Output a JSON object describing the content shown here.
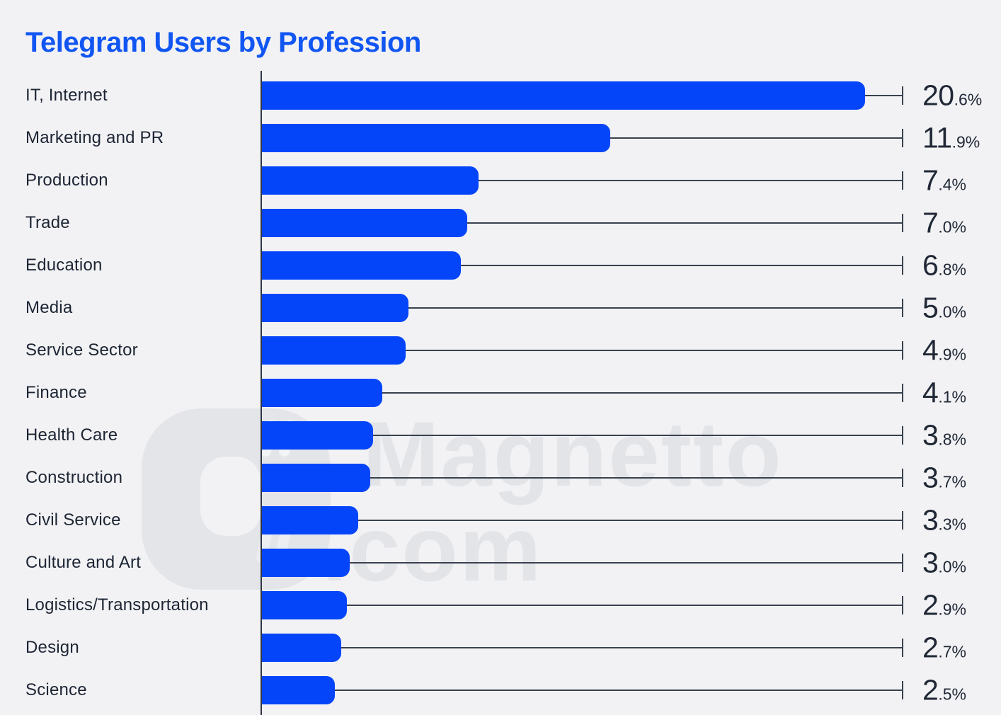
{
  "title": "Telegram Users by Profession",
  "watermark": {
    "line1": "Magnetto",
    "line2": ".com",
    "color": "#e2e4e8"
  },
  "chart_data": {
    "type": "bar",
    "orientation": "horizontal",
    "title": "Telegram Users by Profession",
    "categories": [
      "IT, Internet",
      "Marketing and PR",
      "Production",
      "Trade",
      "Education",
      "Media",
      "Service Sector",
      "Finance",
      "Health Care",
      "Construction",
      "Civil Service",
      "Culture and Art",
      "Logistics/Transportation",
      "Design",
      "Science"
    ],
    "values": [
      20.6,
      11.9,
      7.4,
      7.0,
      6.8,
      5.0,
      4.9,
      4.1,
      3.8,
      3.7,
      3.3,
      3.0,
      2.9,
      2.7,
      2.5
    ],
    "unit": "%",
    "xlim": [
      0,
      21.9
    ],
    "grid": false,
    "legend": false,
    "leader_lines": true,
    "value_style": "large integer part with small decimal part and percent sign",
    "bar_color": "#0545fa",
    "title_color": "#1156f2",
    "label_color": "#1d2534",
    "value_color": "#202836",
    "line_color": "#39414f",
    "axis_color": "#2e3644",
    "background": "#f2f2f4"
  }
}
